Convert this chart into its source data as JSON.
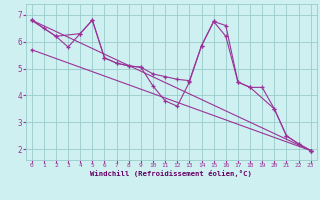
{
  "background_color": "#cff0f0",
  "line_color": "#993399",
  "grid_color": "#99cccc",
  "xlabel": "Windchill (Refroidissement éolien,°C)",
  "xlabel_color": "#660066",
  "xticks": [
    0,
    1,
    2,
    3,
    4,
    5,
    6,
    7,
    8,
    9,
    10,
    11,
    12,
    13,
    14,
    15,
    16,
    17,
    18,
    19,
    20,
    21,
    22,
    23
  ],
  "yticks": [
    2,
    3,
    4,
    5,
    6,
    7
  ],
  "xlim": [
    -0.5,
    23.5
  ],
  "ylim": [
    1.6,
    7.4
  ],
  "series": [
    {
      "x": [
        0,
        1,
        2,
        3,
        4,
        5,
        6,
        7,
        8,
        9,
        10,
        11,
        12,
        13,
        14,
        15,
        16,
        17,
        18,
        19,
        20,
        21,
        22,
        23
      ],
      "y": [
        6.8,
        6.5,
        6.2,
        5.8,
        6.3,
        6.8,
        5.4,
        5.2,
        5.1,
        5.05,
        4.35,
        3.8,
        3.6,
        4.5,
        5.85,
        6.75,
        6.2,
        4.5,
        4.3,
        4.3,
        3.5,
        2.5,
        2.2,
        1.95
      ]
    },
    {
      "x": [
        0,
        2,
        4,
        5,
        6,
        7,
        8,
        9,
        10,
        11,
        12,
        13,
        14,
        15,
        16,
        17,
        18,
        20,
        21,
        22,
        23
      ],
      "y": [
        6.8,
        6.2,
        6.3,
        6.8,
        5.4,
        5.2,
        5.1,
        5.05,
        4.8,
        4.7,
        4.6,
        4.55,
        5.85,
        6.75,
        6.6,
        4.5,
        4.3,
        3.5,
        2.5,
        2.2,
        1.95
      ]
    },
    {
      "x": [
        0,
        23
      ],
      "y": [
        6.8,
        1.95
      ]
    },
    {
      "x": [
        0,
        23
      ],
      "y": [
        5.7,
        1.95
      ]
    }
  ]
}
